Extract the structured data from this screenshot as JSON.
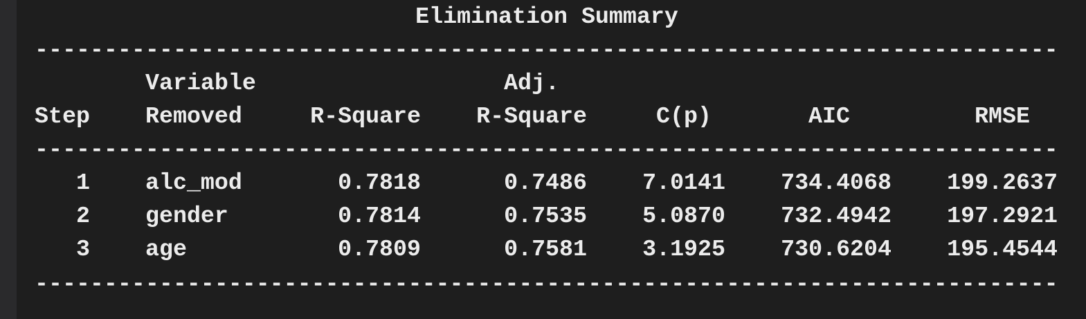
{
  "title": "Elimination Summary",
  "rule_text": "--------------------------------------------------------------------------------------------",
  "header": {
    "row1": {
      "variable": "Variable",
      "adj": "Adj."
    },
    "row2": {
      "step": "Step",
      "removed": "Removed",
      "rsquare": "R-Square",
      "adj_rsquare": "R-Square",
      "cp": "C(p)",
      "aic": "AIC",
      "rmse": "RMSE"
    }
  },
  "rows": [
    {
      "step": "1",
      "variable": "alc_mod",
      "rsquare": "0.7818",
      "adj_rsquare": "0.7486",
      "cp": "7.0141",
      "aic": "734.4068",
      "rmse": "199.2637"
    },
    {
      "step": "2",
      "variable": "gender",
      "rsquare": "0.7814",
      "adj_rsquare": "0.7535",
      "cp": "5.0870",
      "aic": "732.4942",
      "rmse": "197.2921"
    },
    {
      "step": "3",
      "variable": "age",
      "rsquare": "0.7809",
      "adj_rsquare": "0.7581",
      "cp": "3.1925",
      "aic": "730.6204",
      "rmse": "195.4544"
    }
  ]
}
